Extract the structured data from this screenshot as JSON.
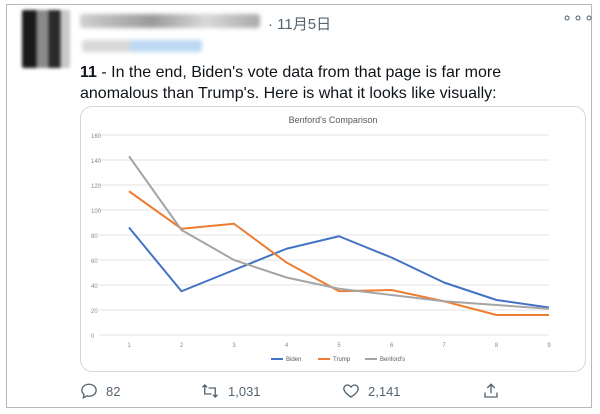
{
  "tweet": {
    "date": "· 11月5日",
    "more_icon": "more-horizontal-icon",
    "text_number": "11",
    "text_body": " - In the end, Biden's vote data from that page is far more anomalous than Trump's. Here is what it looks like visually:"
  },
  "actions": {
    "reply_count": "82",
    "retweet_count": "1,031",
    "like_count": "2,141",
    "reply_icon": "reply-icon",
    "retweet_icon": "retweet-icon",
    "like_icon": "heart-icon",
    "share_icon": "share-icon"
  },
  "chart_data": {
    "type": "line",
    "title": "Benford's Comparison",
    "x": [
      1,
      2,
      3,
      4,
      5,
      6,
      7,
      8,
      9
    ],
    "ylim": [
      0,
      160
    ],
    "yticks": [
      0,
      20,
      40,
      60,
      80,
      100,
      120,
      140,
      160
    ],
    "grid": true,
    "legend_position": "bottom",
    "series": [
      {
        "name": "Biden",
        "color": "#4472c4",
        "values": [
          86,
          35,
          52,
          69,
          79,
          62,
          42,
          28,
          22
        ]
      },
      {
        "name": "Trump",
        "color": "#ed7d31",
        "values": [
          115,
          85,
          89,
          58,
          35,
          36,
          27,
          16,
          16
        ]
      },
      {
        "name": "Benford's",
        "color": "#a5a5a5",
        "values": [
          143,
          84,
          60,
          46,
          37,
          32,
          27,
          24,
          21
        ]
      }
    ]
  }
}
